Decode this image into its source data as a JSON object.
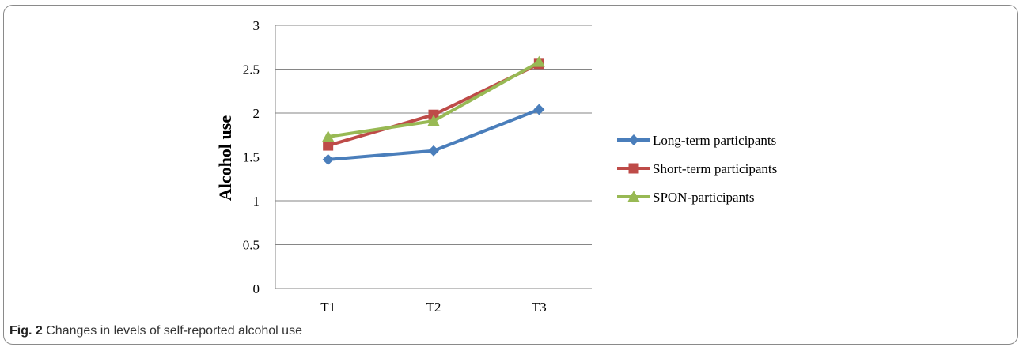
{
  "chart_data": {
    "type": "line",
    "categories": [
      "T1",
      "T2",
      "T3"
    ],
    "ylabel": "Alcohol use",
    "xlabel": "",
    "ylim": [
      0,
      3
    ],
    "yticks": [
      "0",
      "0.5",
      "1",
      "1.5",
      "2",
      "2.5",
      "3"
    ],
    "grid": true,
    "legend_position": "right",
    "series": [
      {
        "name": "Long-term participants",
        "values": [
          1.47,
          1.57,
          2.04
        ],
        "color": "#4a7ebb",
        "marker": "diamond"
      },
      {
        "name": "Short-term participants",
        "values": [
          1.63,
          1.98,
          2.56
        ],
        "color": "#be4b48",
        "marker": "square"
      },
      {
        "name": "SPON-participants",
        "values": [
          1.73,
          1.91,
          2.58
        ],
        "color": "#98b954",
        "marker": "triangle"
      }
    ]
  },
  "caption": {
    "label": "Fig. 2",
    "text": "Changes in levels of self-reported alcohol use"
  }
}
